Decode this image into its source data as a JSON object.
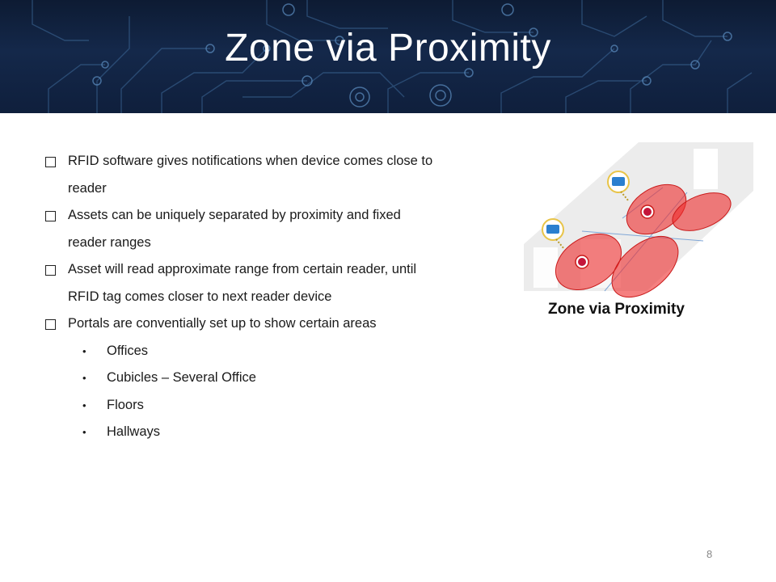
{
  "slide": {
    "title": "Zone via Proximity",
    "page_number": "8"
  },
  "bullets": [
    {
      "text": "RFID software gives notifications when device comes close to",
      "cont": "reader"
    },
    {
      "text": "Assets can be uniquely separated by proximity and fixed",
      "cont": "reader ranges"
    },
    {
      "text": "Asset will read approximate range from certain reader, until",
      "cont": "RFID tag comes closer to next reader device"
    },
    {
      "text": "Portals are conventially set up to show certain areas",
      "cont": ""
    }
  ],
  "sub_bullets": [
    "Offices",
    "Cubicles – Several Office",
    "Floors",
    "Hallways"
  ],
  "figure": {
    "caption": "Zone via Proximity",
    "zone_color": "#ee2b2b",
    "reader_color": "#2b7fcf"
  },
  "colors": {
    "banner": "#0f1f3c",
    "title_text": "#ffffff"
  }
}
